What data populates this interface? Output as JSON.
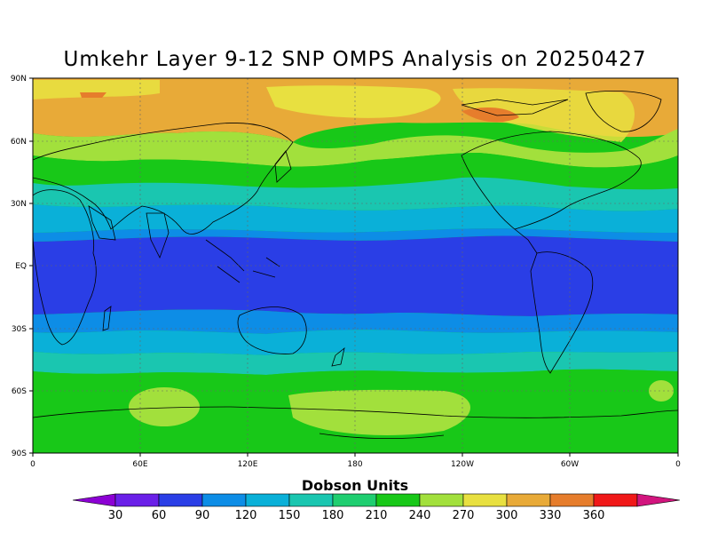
{
  "title": "Umkehr Layer 9-12 SNP OMPS Analysis on 20250427",
  "map": {
    "lat_labels": [
      "90N",
      "60N",
      "30N",
      "EQ",
      "30S",
      "60S",
      "90S"
    ],
    "lon_labels": [
      "0",
      "60E",
      "120E",
      "180",
      "120W",
      "60W",
      "0"
    ]
  },
  "colorbar": {
    "title": "Dobson Units",
    "ticks": [
      "30",
      "60",
      "90",
      "120",
      "150",
      "180",
      "210",
      "240",
      "270",
      "300",
      "330",
      "360"
    ],
    "colors": [
      "#8c00d4",
      "#6a20e8",
      "#2a3ee6",
      "#0d8de6",
      "#0ab0d8",
      "#1ac6b0",
      "#1fce70",
      "#18c818",
      "#a2e03c",
      "#e8e040",
      "#e8aa38",
      "#e67d2c",
      "#f01818",
      "#d2157e"
    ]
  }
}
